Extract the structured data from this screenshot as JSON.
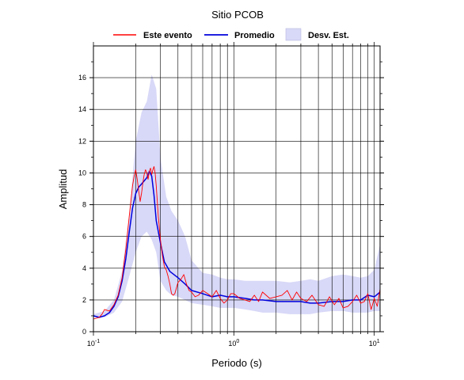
{
  "chart_data": {
    "type": "line",
    "title": "Sitio PCOB",
    "xlabel": "Periodo (s)",
    "ylabel": "Amplitud",
    "x_scale": "log",
    "xlim": [
      0.1,
      11
    ],
    "ylim": [
      0,
      18
    ],
    "grid": true,
    "legend_position": "top",
    "x_ticks": [
      {
        "value": 0.1,
        "mantissa": "10",
        "exp": "-1"
      },
      {
        "value": 1,
        "mantissa": "10",
        "exp": "0"
      },
      {
        "value": 10,
        "mantissa": "10",
        "exp": "1"
      }
    ],
    "y_ticks": [
      "0",
      "2",
      "4",
      "6",
      "8",
      "10",
      "12",
      "14",
      "16"
    ],
    "legend": [
      {
        "label": "Este evento",
        "kind": "line",
        "color": "#ff0000"
      },
      {
        "label": "Promedio",
        "kind": "line",
        "color": "#0000dd"
      },
      {
        "label": "Desv. Est.",
        "kind": "band",
        "color": "#d8d8f8"
      }
    ],
    "band": {
      "name": "Desv. Est.",
      "color": "#d8d8f8",
      "x": [
        0.1,
        0.12,
        0.14,
        0.16,
        0.18,
        0.2,
        0.22,
        0.24,
        0.26,
        0.28,
        0.3,
        0.33,
        0.36,
        0.4,
        0.45,
        0.5,
        0.6,
        0.7,
        0.8,
        0.9,
        1.0,
        1.2,
        1.4,
        1.6,
        2.0,
        2.5,
        3.0,
        3.5,
        4.0,
        5.0,
        6.0,
        7.0,
        8.0,
        9.0,
        10.0,
        11.0
      ],
      "upper": [
        1.1,
        1.3,
        2.0,
        3.8,
        7.5,
        12.0,
        13.8,
        14.5,
        16.2,
        15.3,
        11.0,
        8.5,
        7.6,
        7.0,
        6.0,
        4.5,
        3.7,
        3.6,
        3.4,
        3.3,
        3.3,
        3.2,
        3.2,
        3.2,
        3.2,
        3.1,
        3.2,
        3.3,
        3.2,
        3.5,
        3.6,
        3.5,
        3.4,
        3.5,
        3.9,
        5.5
      ],
      "lower": [
        0.9,
        0.9,
        1.2,
        1.9,
        3.5,
        5.0,
        6.0,
        6.3,
        5.8,
        5.0,
        3.2,
        2.6,
        2.3,
        2.2,
        2.0,
        1.8,
        1.7,
        1.6,
        1.5,
        1.5,
        1.5,
        1.4,
        1.3,
        1.2,
        1.2,
        1.1,
        1.1,
        1.1,
        1.2,
        1.3,
        1.3,
        1.2,
        1.2,
        1.2,
        1.3,
        1.3
      ]
    },
    "series": [
      {
        "name": "Promedio",
        "color": "#0000dd",
        "x": [
          0.1,
          0.11,
          0.12,
          0.13,
          0.14,
          0.15,
          0.16,
          0.17,
          0.18,
          0.19,
          0.2,
          0.21,
          0.22,
          0.23,
          0.24,
          0.25,
          0.26,
          0.27,
          0.28,
          0.3,
          0.32,
          0.35,
          0.4,
          0.45,
          0.5,
          0.6,
          0.7,
          0.8,
          0.9,
          1.0,
          1.2,
          1.4,
          1.6,
          2.0,
          2.5,
          3.0,
          3.5,
          4.0,
          5.0,
          6.0,
          7.0,
          8.0,
          9.0,
          10.0,
          11.0
        ],
        "y": [
          1.0,
          0.9,
          1.0,
          1.2,
          1.6,
          2.2,
          3.2,
          4.6,
          6.3,
          7.8,
          8.7,
          9.1,
          9.3,
          9.5,
          9.7,
          10.1,
          9.8,
          8.6,
          7.0,
          5.6,
          4.4,
          3.8,
          3.4,
          3.0,
          2.6,
          2.4,
          2.2,
          2.3,
          2.2,
          2.2,
          2.1,
          2.0,
          2.0,
          1.9,
          1.9,
          1.9,
          1.8,
          1.8,
          1.9,
          1.9,
          2.0,
          2.0,
          2.3,
          2.2,
          2.5
        ]
      },
      {
        "name": "Este evento",
        "color": "#ff0000",
        "x": [
          0.1,
          0.11,
          0.115,
          0.12,
          0.13,
          0.135,
          0.14,
          0.15,
          0.16,
          0.17,
          0.18,
          0.19,
          0.195,
          0.2,
          0.205,
          0.21,
          0.215,
          0.22,
          0.225,
          0.23,
          0.235,
          0.24,
          0.245,
          0.25,
          0.255,
          0.26,
          0.265,
          0.27,
          0.275,
          0.28,
          0.29,
          0.3,
          0.31,
          0.32,
          0.33,
          0.34,
          0.35,
          0.36,
          0.37,
          0.38,
          0.4,
          0.42,
          0.44,
          0.46,
          0.48,
          0.5,
          0.53,
          0.56,
          0.6,
          0.65,
          0.7,
          0.75,
          0.8,
          0.85,
          0.9,
          0.95,
          1.0,
          1.1,
          1.2,
          1.3,
          1.4,
          1.5,
          1.6,
          1.8,
          2.0,
          2.2,
          2.4,
          2.6,
          2.8,
          3.0,
          3.3,
          3.6,
          4.0,
          4.4,
          4.8,
          5.2,
          5.6,
          6.0,
          6.5,
          7.0,
          7.5,
          8.0,
          8.5,
          9.0,
          9.5,
          10.0,
          10.5,
          11.0
        ],
        "y": [
          0.8,
          0.9,
          1.1,
          1.4,
          1.3,
          1.5,
          1.7,
          2.3,
          3.4,
          5.2,
          7.3,
          9.2,
          9.8,
          10.2,
          9.6,
          8.9,
          8.2,
          8.7,
          9.4,
          9.9,
          10.2,
          10.0,
          9.6,
          10.1,
          10.3,
          9.9,
          10.2,
          10.4,
          10.0,
          9.2,
          7.2,
          5.8,
          4.8,
          4.1,
          3.9,
          3.5,
          3.0,
          2.4,
          2.3,
          2.4,
          3.1,
          3.3,
          3.6,
          3.0,
          2.6,
          2.5,
          2.2,
          2.3,
          2.6,
          2.4,
          2.2,
          2.6,
          2.1,
          1.8,
          2.0,
          2.4,
          2.4,
          2.1,
          2.0,
          1.9,
          2.3,
          1.9,
          2.5,
          2.1,
          2.2,
          2.3,
          2.6,
          2.0,
          2.5,
          2.1,
          1.9,
          2.3,
          1.7,
          1.6,
          2.2,
          1.7,
          2.1,
          1.5,
          1.6,
          1.9,
          2.3,
          1.8,
          1.9,
          2.4,
          1.4,
          2.1,
          1.6,
          2.7
        ]
      }
    ]
  }
}
